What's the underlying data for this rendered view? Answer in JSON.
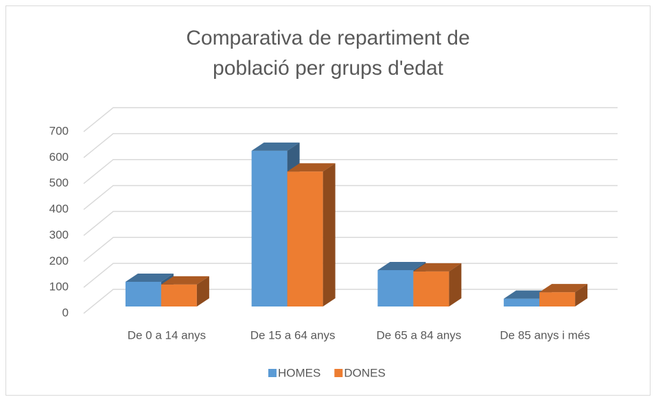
{
  "chart_data": {
    "type": "bar3d",
    "title": "Comparativa de repartiment de població per grups d'edat",
    "categories": [
      "De 0 a 14 anys",
      "De 15 a 64 anys",
      "De 65 a 84 anys",
      "De 85 anys i més"
    ],
    "series": [
      {
        "name": "HOMES",
        "color": "#5b9bd5",
        "values": [
          95,
          600,
          140,
          30
        ]
      },
      {
        "name": "DONES",
        "color": "#ed7d31",
        "values": [
          85,
          520,
          135,
          55
        ]
      }
    ],
    "ylim": [
      0,
      700
    ],
    "yticks": [
      0,
      100,
      200,
      300,
      400,
      500,
      600,
      700
    ],
    "grid": true,
    "legend": "bottom"
  }
}
